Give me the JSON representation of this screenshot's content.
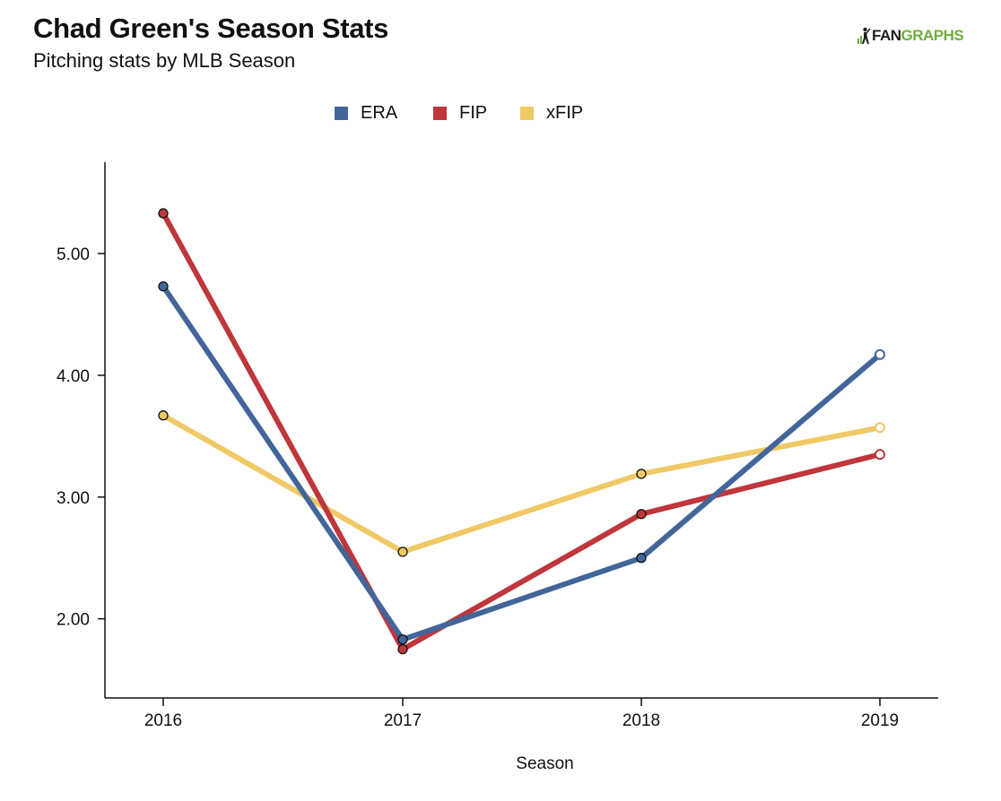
{
  "title": "Chad Green's Season Stats",
  "subtitle": "Pitching stats by MLB Season",
  "logo": {
    "text_fan": "FAN",
    "text_graphs": "GRAPHS",
    "icon": "batter-figure-icon",
    "colors": {
      "fan": "#1f1f1f",
      "graphs": "#6fae3a"
    }
  },
  "chart_data": {
    "type": "line",
    "title": "Chad Green's Season Stats",
    "subtitle": "Pitching stats by MLB Season",
    "xlabel": "Season",
    "ylabel": "",
    "categories": [
      "2016",
      "2017",
      "2018",
      "2019"
    ],
    "ylim": [
      1.35,
      5.75
    ],
    "yticks": [
      2.0,
      3.0,
      4.0,
      5.0
    ],
    "ytick_labels": [
      "2.00",
      "3.00",
      "4.00",
      "5.00"
    ],
    "grid": false,
    "legend_position": "top-center",
    "series": [
      {
        "name": "ERA",
        "color": "#42669a",
        "values": [
          4.73,
          1.83,
          2.5,
          4.17
        ],
        "last_point_hollow": true
      },
      {
        "name": "FIP",
        "color": "#bf363b",
        "values": [
          5.33,
          1.75,
          2.86,
          3.35
        ],
        "last_point_hollow": true
      },
      {
        "name": "xFIP",
        "color": "#f0c865",
        "values": [
          3.67,
          2.55,
          3.19,
          3.57
        ],
        "last_point_hollow": true
      }
    ]
  }
}
